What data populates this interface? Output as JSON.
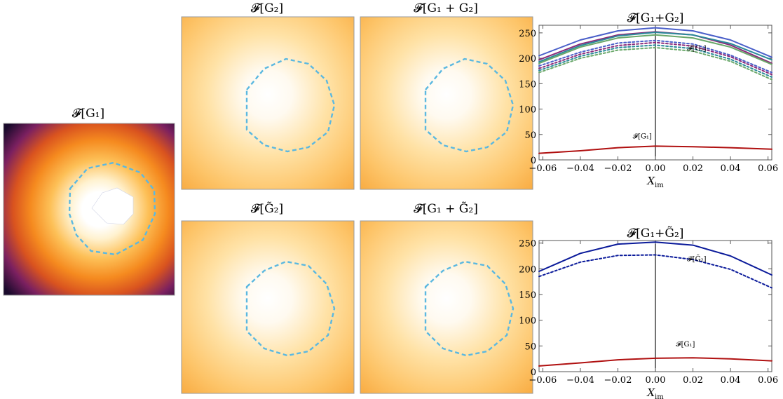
{
  "figure": {
    "panels": [
      {
        "id": "g1",
        "title": "𝓕[G₁]",
        "colormap": "inferno",
        "hole": true
      },
      {
        "id": "g2",
        "title": "𝓕[G₂]",
        "colormap": "inferno-light"
      },
      {
        "id": "g1g2",
        "title": "𝓕[G₁ + G₂]",
        "colormap": "inferno-light"
      },
      {
        "id": "g2t",
        "title": "𝓕[G̃₂]",
        "colormap": "inferno-light"
      },
      {
        "id": "g1g2t",
        "title": "𝓕[G₁ + G̃₂]",
        "colormap": "inferno-light"
      }
    ],
    "contour_color": "#5bb8e0"
  },
  "chart_data": [
    {
      "type": "line",
      "title": "𝓕[G₁+G₂]",
      "xlabel": "X_im",
      "xlim": [
        -0.062,
        0.062
      ],
      "ylim": [
        0,
        265
      ],
      "xticks": [
        "−0.06",
        "−0.04",
        "−0.02",
        "0.00",
        "0.02",
        "0.04",
        "0.06"
      ],
      "yticks": [
        "0",
        "50",
        "100",
        "150",
        "200",
        "250"
      ],
      "annotations": [
        "𝓕[G₂]",
        "𝓕[G₁]"
      ],
      "series": [
        {
          "style": "solid",
          "color": "#4a5fc9",
          "x": [
            -0.062,
            -0.04,
            -0.02,
            0,
            0.02,
            0.04,
            0.062
          ],
          "y": [
            205,
            236,
            254,
            260,
            254,
            236,
            202
          ]
        },
        {
          "style": "solid",
          "color": "#8a2a7a",
          "x": [
            -0.062,
            -0.04,
            -0.02,
            0,
            0.02,
            0.04,
            0.062
          ],
          "y": [
            197,
            228,
            246,
            252,
            246,
            226,
            190
          ]
        },
        {
          "style": "solid",
          "color": "#2a8a9a",
          "x": [
            -0.062,
            -0.04,
            -0.02,
            0,
            0.02,
            0.04,
            0.062
          ],
          "y": [
            193,
            225,
            244,
            251,
            246,
            229,
            197
          ]
        },
        {
          "style": "solid",
          "color": "#6aa86a",
          "x": [
            -0.062,
            -0.04,
            -0.02,
            0,
            0.02,
            0.04,
            0.062
          ],
          "y": [
            190,
            222,
            240,
            246,
            240,
            222,
            188
          ]
        },
        {
          "style": "dashed",
          "color": "#4a5fc9",
          "x": [
            -0.062,
            -0.04,
            -0.02,
            0,
            0.02,
            0.04,
            0.062
          ],
          "y": [
            185,
            212,
            230,
            235,
            228,
            206,
            172
          ]
        },
        {
          "style": "dashed",
          "color": "#8a2a7a",
          "x": [
            -0.062,
            -0.04,
            -0.02,
            0,
            0.02,
            0.04,
            0.062
          ],
          "y": [
            180,
            208,
            225,
            231,
            224,
            203,
            168
          ]
        },
        {
          "style": "dashed",
          "color": "#2a8a9a",
          "x": [
            -0.062,
            -0.04,
            -0.02,
            0,
            0.02,
            0.04,
            0.062
          ],
          "y": [
            176,
            204,
            221,
            226,
            219,
            198,
            163
          ]
        },
        {
          "style": "dashed",
          "color": "#6aa86a",
          "x": [
            -0.062,
            -0.04,
            -0.02,
            0,
            0.02,
            0.04,
            0.062
          ],
          "y": [
            172,
            200,
            216,
            221,
            214,
            194,
            158
          ]
        },
        {
          "style": "solid",
          "color": "#b01010",
          "x": [
            -0.062,
            -0.04,
            -0.02,
            0,
            0.02,
            0.04,
            0.062
          ],
          "y": [
            13,
            18,
            24,
            27,
            26,
            24,
            21
          ]
        }
      ]
    },
    {
      "type": "line",
      "title": "𝓕[G₁+G̃₂]",
      "xlabel": "X_im",
      "xlim": [
        -0.062,
        0.062
      ],
      "ylim": [
        0,
        255
      ],
      "xticks": [
        "−0.06",
        "−0.04",
        "−0.02",
        "0.00",
        "0.02",
        "0.04",
        "0.06"
      ],
      "yticks": [
        "0",
        "50",
        "100",
        "150",
        "200",
        "250"
      ],
      "annotations": [
        "𝓕[G̃₂]",
        "𝓕[G₁]"
      ],
      "series": [
        {
          "style": "solid",
          "color": "#0a1a9a",
          "x": [
            -0.062,
            -0.04,
            -0.02,
            0,
            0.02,
            0.04,
            0.062
          ],
          "y": [
            195,
            230,
            248,
            252,
            246,
            225,
            188
          ]
        },
        {
          "style": "dashed",
          "color": "#0a1a9a",
          "x": [
            -0.062,
            -0.04,
            -0.02,
            0,
            0.02,
            0.04,
            0.062
          ],
          "y": [
            185,
            213,
            226,
            227,
            218,
            199,
            163
          ]
        },
        {
          "style": "solid",
          "color": "#b01010",
          "x": [
            -0.062,
            -0.04,
            -0.02,
            0,
            0.02,
            0.04,
            0.062
          ],
          "y": [
            11,
            17,
            23,
            26,
            27,
            25,
            21
          ]
        }
      ]
    }
  ]
}
